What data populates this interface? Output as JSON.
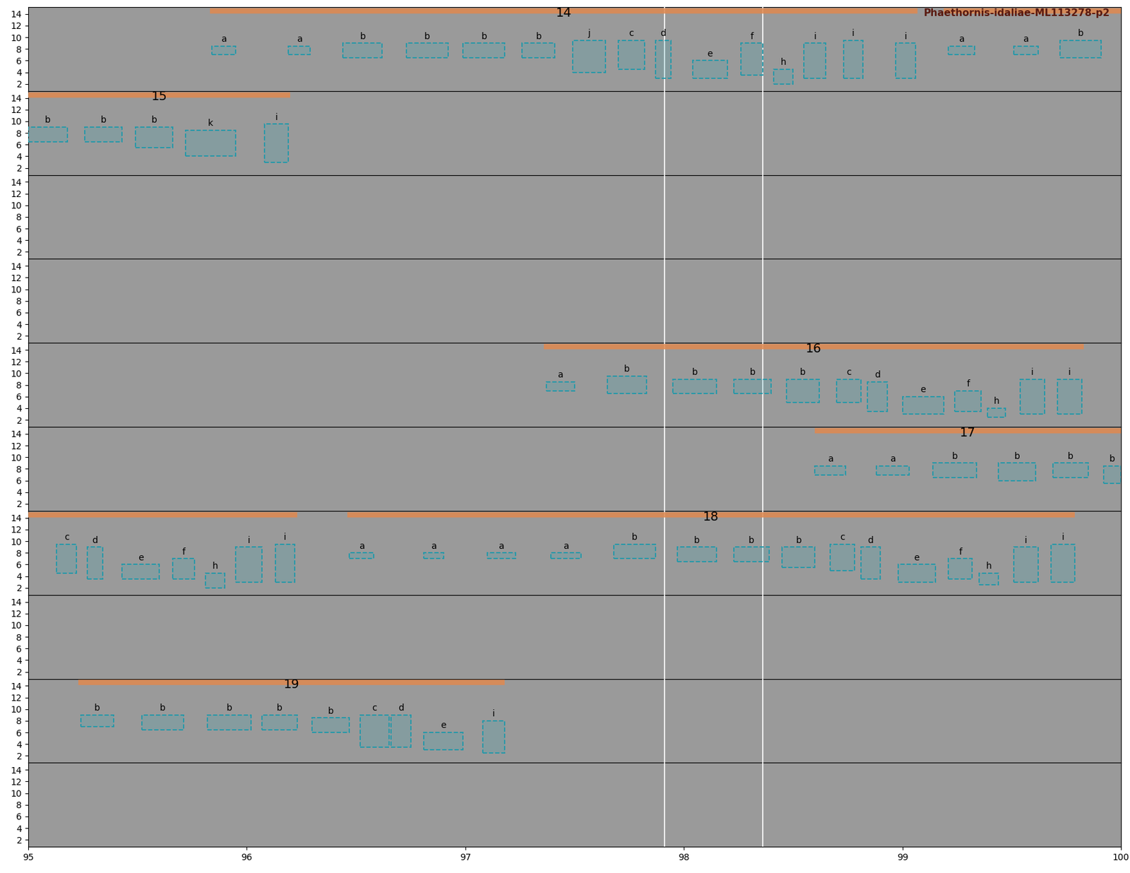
{
  "chart_data": {
    "type": "spectrogram",
    "title": "Phaethornis-idaliae-ML113278-p2",
    "xlim": [
      95,
      100
    ],
    "xticks": [
      95,
      96,
      97,
      98,
      99,
      100
    ],
    "ylim": [
      0.8,
      15.2
    ],
    "yticks": [
      2,
      4,
      6,
      8,
      10,
      12,
      14
    ],
    "markers": [
      97.91,
      98.36
    ],
    "panels": [
      {
        "songs": [
          {
            "label": "14",
            "x": [
              95.83,
              99.07
            ]
          },
          {
            "x": [
              99.19,
              100
            ]
          }
        ],
        "boxes": [
          {
            "label": "a",
            "x": [
              95.84,
              95.95
            ],
            "y": [
              7,
              8.5
            ]
          },
          {
            "label": "a",
            "x": [
              96.19,
              96.29
            ],
            "y": [
              7,
              8.5
            ]
          },
          {
            "label": "b",
            "x": [
              96.44,
              96.62
            ],
            "y": [
              6.5,
              9
            ]
          },
          {
            "label": "b",
            "x": [
              96.73,
              96.92
            ],
            "y": [
              6.5,
              9
            ]
          },
          {
            "label": "b",
            "x": [
              96.99,
              97.18
            ],
            "y": [
              6.5,
              9
            ]
          },
          {
            "label": "b",
            "x": [
              97.26,
              97.41
            ],
            "y": [
              6.5,
              9
            ]
          },
          {
            "label": "j",
            "x": [
              97.49,
              97.64
            ],
            "y": [
              4,
              9.5
            ]
          },
          {
            "label": "c",
            "x": [
              97.7,
              97.82
            ],
            "y": [
              4.5,
              9.5
            ]
          },
          {
            "label": "d",
            "x": [
              97.87,
              97.94
            ],
            "y": [
              3,
              9.5
            ]
          },
          {
            "label": "e",
            "x": [
              98.04,
              98.2
            ],
            "y": [
              3,
              6
            ]
          },
          {
            "label": "f",
            "x": [
              98.26,
              98.36
            ],
            "y": [
              3.5,
              9
            ]
          },
          {
            "label": "h",
            "x": [
              98.41,
              98.5
            ],
            "y": [
              2,
              4.5
            ]
          },
          {
            "label": "i",
            "x": [
              98.55,
              98.65
            ],
            "y": [
              3,
              9
            ]
          },
          {
            "label": "i",
            "x": [
              98.73,
              98.82
            ],
            "y": [
              3,
              9.5
            ]
          },
          {
            "label": "i",
            "x": [
              98.97,
              99.06
            ],
            "y": [
              3,
              9
            ]
          },
          {
            "label": "a",
            "x": [
              99.21,
              99.33
            ],
            "y": [
              7,
              8.5
            ]
          },
          {
            "label": "a",
            "x": [
              99.51,
              99.62
            ],
            "y": [
              7,
              8.5
            ]
          },
          {
            "label": "b",
            "x": [
              99.72,
              99.91
            ],
            "y": [
              6.5,
              9.5
            ]
          }
        ]
      },
      {
        "songs": [
          {
            "label": "15",
            "x": [
              95,
              96.2
            ]
          }
        ],
        "boxes": [
          {
            "label": "b",
            "x": [
              95.0,
              95.18
            ],
            "y": [
              6.5,
              9
            ]
          },
          {
            "label": "b",
            "x": [
              95.26,
              95.43
            ],
            "y": [
              6.5,
              9
            ]
          },
          {
            "label": "b",
            "x": [
              95.49,
              95.66
            ],
            "y": [
              5.5,
              9
            ]
          },
          {
            "label": "k",
            "x": [
              95.72,
              95.95
            ],
            "y": [
              4,
              8.5
            ]
          },
          {
            "label": "i",
            "x": [
              96.08,
              96.19
            ],
            "y": [
              3,
              9.5
            ]
          }
        ]
      },
      {
        "songs": [],
        "boxes": []
      },
      {
        "songs": [],
        "boxes": []
      },
      {
        "songs": [
          {
            "label": "16",
            "x": [
              97.36,
              99.83
            ]
          }
        ],
        "boxes": [
          {
            "label": "a",
            "x": [
              97.37,
              97.5
            ],
            "y": [
              7,
              8.5
            ]
          },
          {
            "label": "b",
            "x": [
              97.65,
              97.83
            ],
            "y": [
              6.5,
              9.5
            ]
          },
          {
            "label": "b",
            "x": [
              97.95,
              98.15
            ],
            "y": [
              6.5,
              9
            ]
          },
          {
            "label": "b",
            "x": [
              98.23,
              98.4
            ],
            "y": [
              6.5,
              9
            ]
          },
          {
            "label": "b",
            "x": [
              98.47,
              98.62
            ],
            "y": [
              5,
              9
            ]
          },
          {
            "label": "c",
            "x": [
              98.7,
              98.81
            ],
            "y": [
              5,
              9
            ]
          },
          {
            "label": "d",
            "x": [
              98.84,
              98.93
            ],
            "y": [
              3.5,
              8.5
            ]
          },
          {
            "label": "e",
            "x": [
              99.0,
              99.19
            ],
            "y": [
              3,
              6
            ]
          },
          {
            "label": "f",
            "x": [
              99.24,
              99.36
            ],
            "y": [
              3.5,
              7
            ]
          },
          {
            "label": "h",
            "x": [
              99.39,
              99.47
            ],
            "y": [
              2.5,
              4
            ]
          },
          {
            "label": "i",
            "x": [
              99.54,
              99.65
            ],
            "y": [
              3,
              9
            ]
          },
          {
            "label": "i",
            "x": [
              99.71,
              99.82
            ],
            "y": [
              3,
              9
            ]
          }
        ]
      },
      {
        "songs": [
          {
            "label": "17",
            "x": [
              98.6,
              100
            ]
          }
        ],
        "boxes": [
          {
            "label": "a",
            "x": [
              98.6,
              98.74
            ],
            "y": [
              7,
              8.5
            ]
          },
          {
            "label": "a",
            "x": [
              98.88,
              99.03
            ],
            "y": [
              7,
              8.5
            ]
          },
          {
            "label": "b",
            "x": [
              99.14,
              99.34
            ],
            "y": [
              6.5,
              9
            ]
          },
          {
            "label": "b",
            "x": [
              99.44,
              99.61
            ],
            "y": [
              6,
              9
            ]
          },
          {
            "label": "b",
            "x": [
              99.69,
              99.85
            ],
            "y": [
              6.5,
              9
            ]
          },
          {
            "label": "b",
            "x": [
              99.92,
              100
            ],
            "y": [
              5.5,
              8.5
            ]
          }
        ]
      },
      {
        "songs": [
          {
            "x": [
              95,
              96.23
            ]
          },
          {
            "label": "18",
            "x": [
              96.46,
              99.79
            ]
          }
        ],
        "boxes": [
          {
            "label": "c",
            "x": [
              95.13,
              95.22
            ],
            "y": [
              4.5,
              9.5
            ]
          },
          {
            "label": "d",
            "x": [
              95.27,
              95.34
            ],
            "y": [
              3.5,
              9
            ]
          },
          {
            "label": "e",
            "x": [
              95.43,
              95.6
            ],
            "y": [
              3.5,
              6
            ]
          },
          {
            "label": "f",
            "x": [
              95.66,
              95.76
            ],
            "y": [
              3.5,
              7
            ]
          },
          {
            "label": "h",
            "x": [
              95.81,
              95.9
            ],
            "y": [
              2,
              4.5
            ]
          },
          {
            "label": "i",
            "x": [
              95.95,
              96.07
            ],
            "y": [
              3,
              9
            ]
          },
          {
            "label": "i",
            "x": [
              96.13,
              96.22
            ],
            "y": [
              3,
              9.5
            ]
          },
          {
            "label": "a",
            "x": [
              96.47,
              96.58
            ],
            "y": [
              7,
              8
            ]
          },
          {
            "label": "a",
            "x": [
              96.81,
              96.9
            ],
            "y": [
              7,
              8
            ]
          },
          {
            "label": "a",
            "x": [
              97.1,
              97.23
            ],
            "y": [
              7,
              8
            ]
          },
          {
            "label": "a",
            "x": [
              97.39,
              97.53
            ],
            "y": [
              7,
              8
            ]
          },
          {
            "label": "b",
            "x": [
              97.68,
              97.87
            ],
            "y": [
              7,
              9.5
            ]
          },
          {
            "label": "b",
            "x": [
              97.97,
              98.15
            ],
            "y": [
              6.5,
              9
            ]
          },
          {
            "label": "b",
            "x": [
              98.23,
              98.39
            ],
            "y": [
              6.5,
              9
            ]
          },
          {
            "label": "b",
            "x": [
              98.45,
              98.6
            ],
            "y": [
              5.5,
              9
            ]
          },
          {
            "label": "c",
            "x": [
              98.67,
              98.78
            ],
            "y": [
              5,
              9.5
            ]
          },
          {
            "label": "d",
            "x": [
              98.81,
              98.9
            ],
            "y": [
              3.5,
              9
            ]
          },
          {
            "label": "e",
            "x": [
              98.98,
              99.15
            ],
            "y": [
              3,
              6
            ]
          },
          {
            "label": "f",
            "x": [
              99.21,
              99.32
            ],
            "y": [
              3.5,
              7
            ]
          },
          {
            "label": "h",
            "x": [
              99.35,
              99.44
            ],
            "y": [
              2.5,
              4.5
            ]
          },
          {
            "label": "i",
            "x": [
              99.51,
              99.62
            ],
            "y": [
              3,
              9
            ]
          },
          {
            "label": "i",
            "x": [
              99.68,
              99.79
            ],
            "y": [
              3,
              9.5
            ]
          }
        ]
      },
      {
        "songs": [],
        "boxes": []
      },
      {
        "songs": [
          {
            "label": "19",
            "x": [
              95.23,
              97.18
            ]
          }
        ],
        "boxes": [
          {
            "label": "b",
            "x": [
              95.24,
              95.39
            ],
            "y": [
              7,
              9
            ]
          },
          {
            "label": "b",
            "x": [
              95.52,
              95.71
            ],
            "y": [
              6.5,
              9
            ]
          },
          {
            "label": "b",
            "x": [
              95.82,
              96.02
            ],
            "y": [
              6.5,
              9
            ]
          },
          {
            "label": "b",
            "x": [
              96.07,
              96.23
            ],
            "y": [
              6.5,
              9
            ]
          },
          {
            "label": "b",
            "x": [
              96.3,
              96.47
            ],
            "y": [
              6,
              8.5
            ]
          },
          {
            "label": "c",
            "x": [
              96.52,
              96.65
            ],
            "y": [
              3.5,
              9
            ]
          },
          {
            "label": "d",
            "x": [
              96.66,
              96.75
            ],
            "y": [
              3.5,
              9
            ]
          },
          {
            "label": "e",
            "x": [
              96.81,
              96.99
            ],
            "y": [
              3,
              6
            ]
          },
          {
            "label": "i",
            "x": [
              97.08,
              97.18
            ],
            "y": [
              2.5,
              8
            ]
          }
        ]
      },
      {
        "songs": [],
        "boxes": []
      }
    ]
  }
}
